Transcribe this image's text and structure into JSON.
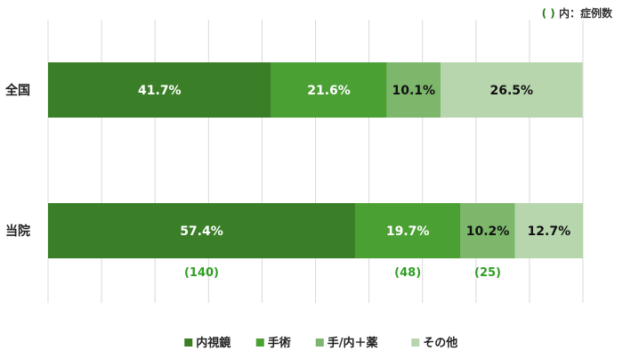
{
  "note": {
    "paren": "( )",
    "text": "内：症例数"
  },
  "chart_data": {
    "type": "bar",
    "orientation": "horizontal",
    "stacked": true,
    "normalized": true,
    "xlim": [
      0,
      100
    ],
    "grid": true,
    "legend_position": "bottom",
    "categories": [
      "全国",
      "当院"
    ],
    "series": [
      {
        "name": "内視鏡",
        "color": "#3a7f27",
        "values": [
          41.7,
          57.4
        ],
        "labels": [
          "41.7%",
          "57.4%"
        ],
        "counts": [
          null,
          "(140)"
        ],
        "label_color": "#ffffff"
      },
      {
        "name": "手術",
        "color": "#4aa033",
        "values": [
          21.6,
          19.7
        ],
        "labels": [
          "21.6%",
          "19.7%"
        ],
        "counts": [
          null,
          "(48)"
        ],
        "label_color": "#ffffff"
      },
      {
        "name": "手/内＋薬",
        "color": "#7cb76c",
        "values": [
          10.1,
          10.2
        ],
        "labels": [
          "10.1%",
          "10.2%"
        ],
        "counts": [
          null,
          "(25)"
        ],
        "label_color": "#111111"
      },
      {
        "name": "その他",
        "color": "#b7d6ad",
        "values": [
          26.5,
          12.7
        ],
        "labels": [
          "26.5%",
          "12.7%"
        ],
        "counts": [
          null,
          null
        ],
        "label_color": "#111111"
      }
    ]
  }
}
